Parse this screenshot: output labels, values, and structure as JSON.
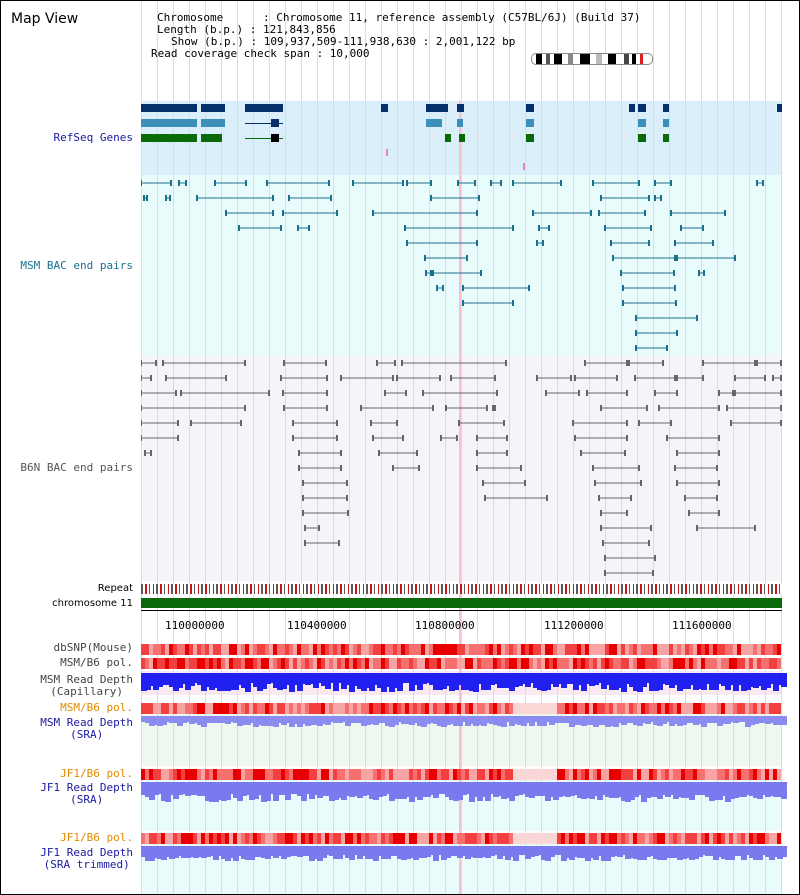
{
  "view": {
    "title": "Map View"
  },
  "header": {
    "chromosome": "Chromosome      : Chromosome 11, reference assembly (C57BL/6J) (Build 37)",
    "length": "Length (b.p.) : 121,843,856",
    "show": "Show (b.p.) : 109,937,509-111,938,630 : 2,001,122 bp",
    "coverage": "Read coverage check span : 10,000"
  },
  "tracks": {
    "refseq": "RefSeq Genes",
    "msm_bac": "MSM BAC end pairs",
    "b6n_bac": "B6N BAC end pairs",
    "repeat": "Repeat",
    "chromosome": "chromosome 11",
    "dbsnp": "dbSNP(Mouse)",
    "msm_b6_pol": "MSM/B6 pol.",
    "msm_depth_cap_1": "MSM Read Depth",
    "msm_depth_cap_2": "(Capillary)",
    "msm_b6_pol_sra": "MSM/B6 pol.",
    "msm_depth_sra_1": "MSM Read Depth",
    "msm_depth_sra_2": "(SRA)",
    "jf1_b6_pol_1": "JF1/B6 pol.",
    "jf1_depth_sra_1": "JF1 Read Depth",
    "jf1_depth_sra_2": "(SRA)",
    "jf1_b6_pol_2": "JF1/B6 pol.",
    "jf1_depth_trim_1": "JF1 Read Depth",
    "jf1_depth_trim_2": "(SRA trimmed)"
  },
  "axis": {
    "ticks": [
      "110000000",
      "110400000",
      "110800000",
      "111200000",
      "111600000"
    ]
  },
  "colors": {
    "refseq_bg": "#dbeffa",
    "msm_bg": "#e9fbfb",
    "b6n_bg": "#f5f5f9",
    "gene_dark": "#06306a",
    "gene_mid": "#3b8fb8",
    "gene_green": "#0a6a0a",
    "msm_pair": "#1b6f8f",
    "b6n_pair": "#666666",
    "chromosome": "#0a6a0a",
    "label_blue": "#1a1aa0",
    "label_orange": "#e08a00",
    "depth_blue": "#2020f0",
    "depth_light": "#7a7aee",
    "highlight": "#f8b0c0"
  }
}
